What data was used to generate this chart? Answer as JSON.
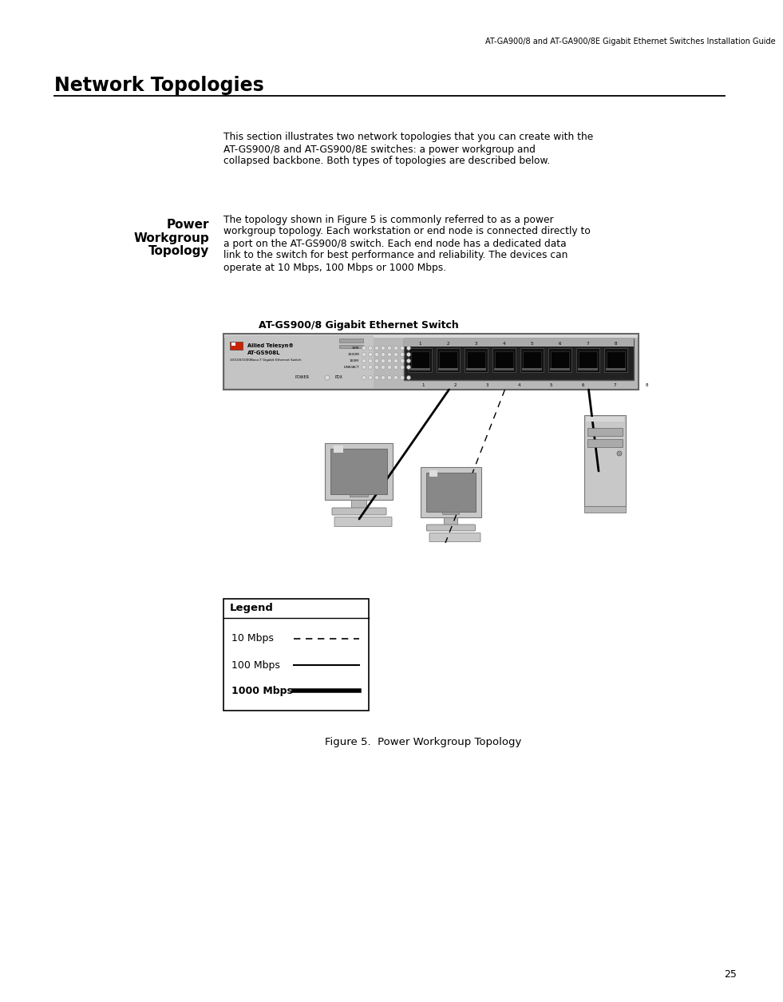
{
  "page_bg": "#ffffff",
  "header_text": "AT-GA900/8 and AT-GA900/8E Gigabit Ethernet Switches Installation Guide",
  "header_fontsize": 7.5,
  "title": "Network Topologies",
  "title_fontsize": 17,
  "section_label_line1": "Power",
  "section_label_line2": "Workgroup",
  "section_label_line3": "Topology",
  "section_label_fontsize": 11,
  "intro_text_lines": [
    "This section illustrates two network topologies that you can create with the",
    "AT-GS900/8 and AT-GS900/8E switches: a power workgroup and",
    "collapsed backbone. Both types of topologies are described below."
  ],
  "body_text_lines": [
    "The topology shown in Figure 5 is commonly referred to as a power",
    "workgroup topology. Each workstation or end node is connected directly to",
    "a port on the AT-GS900/8 switch. Each end node has a dedicated data",
    "link to the switch for best performance and reliability. The devices can",
    "operate at 10 Mbps, 100 Mbps or 1000 Mbps."
  ],
  "diagram_label": "AT-GS900/8 Gigabit Ethernet Switch",
  "diagram_label_fontsize": 9,
  "legend_title": "Legend",
  "legend_items": [
    "10 Mbps",
    "100 Mbps",
    "1000 Mbps"
  ],
  "legend_bold": [
    false,
    false,
    true
  ],
  "figure_caption": "Figure 5.  Power Workgroup Topology",
  "page_number": "25",
  "text_color": "#000000",
  "switch_body_color": "#c0c0c0",
  "switch_border_color": "#777777",
  "switch_port_bg": "#1a1a1a",
  "switch_port_color": "#111111"
}
